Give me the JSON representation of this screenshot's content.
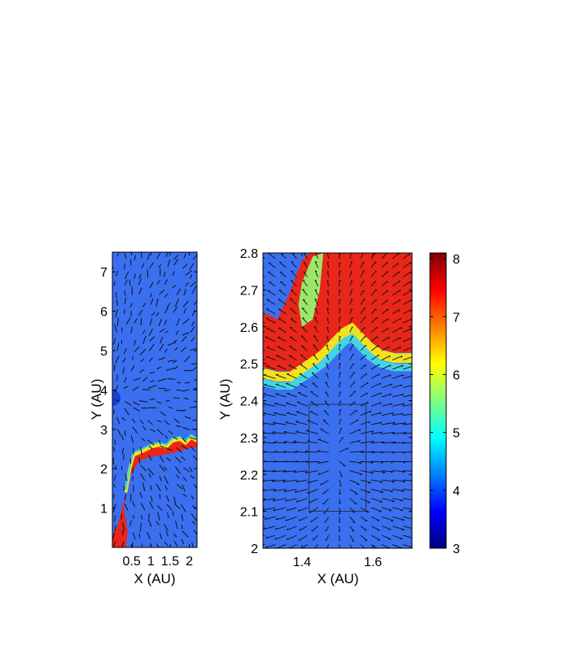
{
  "chart_data": [
    {
      "type": "heatmap",
      "title": "",
      "xlabel": "X (AU)",
      "ylabel": "Y (AU)",
      "xlim": [
        0,
        2.2
      ],
      "ylim": [
        0,
        7.5
      ],
      "xticks": [
        0.5,
        1,
        1.5,
        2
      ],
      "xtick_labels": [
        "0.5",
        "1",
        "1.5",
        "2"
      ],
      "yticks": [
        1,
        2,
        3,
        4,
        5,
        6,
        7
      ],
      "ytick_labels": [
        "1",
        "2",
        "3",
        "4",
        "5",
        "6",
        "7"
      ],
      "background_value": 4,
      "source_center": [
        0,
        3.8
      ],
      "shock_front": [
        [
          0.35,
          1.4
        ],
        [
          0.45,
          2.0
        ],
        [
          0.55,
          2.35
        ],
        [
          0.8,
          2.45
        ],
        [
          1.0,
          2.55
        ],
        [
          1.2,
          2.6
        ],
        [
          1.4,
          2.55
        ],
        [
          1.55,
          2.7
        ],
        [
          1.75,
          2.75
        ],
        [
          1.9,
          2.65
        ],
        [
          2.05,
          2.8
        ],
        [
          2.2,
          2.7
        ]
      ],
      "high_value_region": [
        [
          0,
          0
        ],
        [
          0.35,
          0
        ],
        [
          0.4,
          0.4
        ],
        [
          0.3,
          1.0
        ],
        [
          0.35,
          1.4
        ],
        [
          0.45,
          2.0
        ],
        [
          0.55,
          2.35
        ],
        [
          0.8,
          2.45
        ],
        [
          1.0,
          2.55
        ],
        [
          1.2,
          2.6
        ],
        [
          1.4,
          2.55
        ],
        [
          1.55,
          2.7
        ],
        [
          1.75,
          2.75
        ],
        [
          1.9,
          2.65
        ],
        [
          2.05,
          2.8
        ],
        [
          2.2,
          2.7
        ],
        [
          2.2,
          2.55
        ],
        [
          1.9,
          2.5
        ],
        [
          1.6,
          2.4
        ],
        [
          1.3,
          2.35
        ],
        [
          1.0,
          2.3
        ],
        [
          0.7,
          2.2
        ],
        [
          0.45,
          1.8
        ],
        [
          0.3,
          1.2
        ],
        [
          0.15,
          0.6
        ],
        [
          0,
          0.3
        ]
      ],
      "high_value": 7.5,
      "grid": false
    },
    {
      "type": "heatmap",
      "title": "",
      "xlabel": "X (AU)",
      "ylabel": "Y (AU)",
      "xlim": [
        1.29,
        1.71
      ],
      "ylim": [
        2.0,
        2.8
      ],
      "xticks": [
        1.4,
        1.6
      ],
      "xtick_labels": [
        "1.4",
        "1.6"
      ],
      "yticks": [
        2.0,
        2.1,
        2.2,
        2.3,
        2.4,
        2.5,
        2.6,
        2.7,
        2.8
      ],
      "ytick_labels": [
        "2",
        "2.1",
        "2.2",
        "2.3",
        "2.4",
        "2.5",
        "2.6",
        "2.7",
        "2.8"
      ],
      "background_value": 4,
      "source_center": [
        1.5,
        2.25
      ],
      "inset_box": {
        "x": [
          1.42,
          1.58
        ],
        "y": [
          2.1,
          2.39
        ]
      },
      "front_profile": [
        [
          1.29,
          2.45
        ],
        [
          1.33,
          2.44
        ],
        [
          1.37,
          2.44
        ],
        [
          1.4,
          2.46
        ],
        [
          1.43,
          2.48
        ],
        [
          1.46,
          2.5
        ],
        [
          1.49,
          2.53
        ],
        [
          1.52,
          2.56
        ],
        [
          1.54,
          2.57
        ],
        [
          1.56,
          2.55
        ],
        [
          1.59,
          2.52
        ],
        [
          1.62,
          2.5
        ],
        [
          1.66,
          2.49
        ],
        [
          1.71,
          2.49
        ]
      ],
      "upper_boundary": [
        [
          1.29,
          2.64
        ],
        [
          1.33,
          2.62
        ],
        [
          1.36,
          2.68
        ],
        [
          1.38,
          2.73
        ],
        [
          1.4,
          2.78
        ],
        [
          1.42,
          2.8
        ]
      ],
      "cyan_pocket": [
        [
          1.4,
          2.6
        ],
        [
          1.39,
          2.66
        ],
        [
          1.4,
          2.72
        ],
        [
          1.43,
          2.79
        ],
        [
          1.46,
          2.8
        ],
        [
          1.45,
          2.7
        ],
        [
          1.43,
          2.62
        ]
      ],
      "grid": false
    }
  ],
  "colorbar": {
    "min": 3,
    "max": 8.1,
    "ticks": [
      3,
      4,
      5,
      6,
      7,
      8
    ],
    "tick_labels": [
      "3",
      "4",
      "5",
      "6",
      "7",
      "8"
    ],
    "colormap": "jet"
  }
}
